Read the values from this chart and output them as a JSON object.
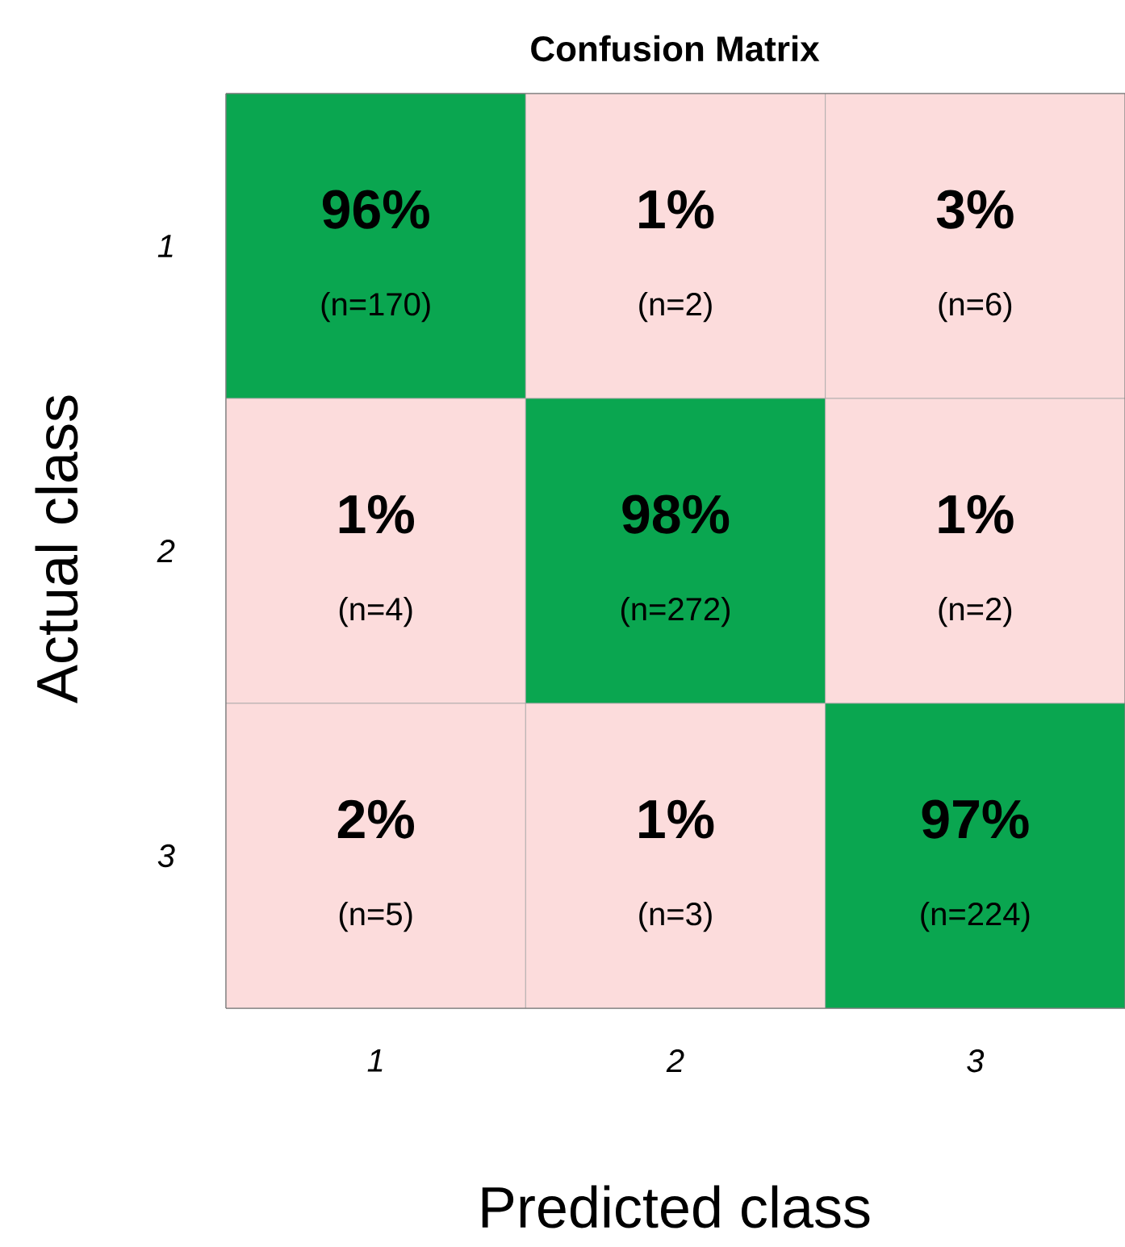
{
  "chart_data": {
    "type": "heatmap",
    "title": "Confusion Matrix",
    "xlabel": "Predicted class",
    "ylabel": "Actual class",
    "categories": [
      "1",
      "2",
      "3"
    ],
    "y_categories": [
      "1",
      "2",
      "3"
    ],
    "cells": [
      [
        96,
        1,
        3
      ],
      [
        1,
        98,
        1
      ],
      [
        2,
        1,
        97
      ]
    ],
    "cell_labels": [
      [
        "96%",
        "1%",
        "3%"
      ],
      [
        "1%",
        "98%",
        "1%"
      ],
      [
        "2%",
        "1%",
        "97%"
      ]
    ],
    "colors": [
      "#fcdcdc",
      "#0aa650"
    ],
    "annotations": [
      "(n=170)",
      "(n=2)",
      "(n=6)",
      "(n=4)",
      "(n=272)",
      "(n=2)",
      "(n=5)",
      "(n=3)",
      "(n=224)"
    ]
  }
}
